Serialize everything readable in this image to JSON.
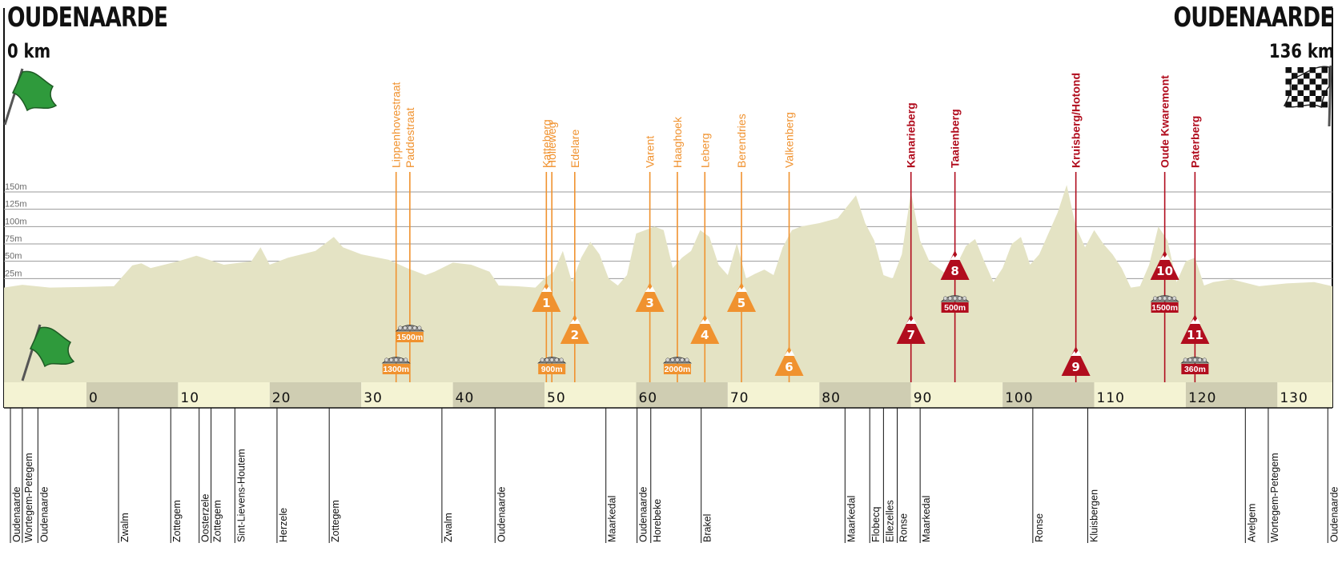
{
  "start": {
    "city": "OUDENAARDE",
    "distance": "0 km"
  },
  "finish": {
    "city": "OUDENAARDE",
    "distance": "136 km"
  },
  "colors": {
    "profile_fill": "#e4e3c4",
    "km_band_light": "#f4f3d3",
    "km_band_dark": "#cfcdb2",
    "climb_orange": "#f0922f",
    "climb_red": "#b10d1e",
    "grid": "#9a9a9a",
    "text": "#111111"
  },
  "chart_data": {
    "type": "area",
    "title": "",
    "xlabel": "",
    "ylabel": "",
    "xlim": [
      -9,
      136
    ],
    "ylim": [
      0,
      160
    ],
    "y_ticks": [
      {
        "value": 25,
        "label": "25m"
      },
      {
        "value": 50,
        "label": "50m"
      },
      {
        "value": 75,
        "label": "75m"
      },
      {
        "value": 100,
        "label": "100m"
      },
      {
        "value": 125,
        "label": "125m"
      },
      {
        "value": 150,
        "label": "150m"
      }
    ],
    "x_ticks": [
      0,
      10,
      20,
      30,
      40,
      50,
      60,
      70,
      80,
      90,
      100,
      110,
      120,
      130
    ],
    "series": [
      {
        "x": [
          -9,
          -7,
          -4,
          0,
          3,
          5,
          6,
          7,
          10,
          12,
          15,
          18,
          19,
          20,
          22,
          25,
          27,
          28,
          30,
          33,
          35,
          37,
          38,
          40,
          42,
          44,
          45,
          47,
          48,
          49,
          50,
          51,
          52,
          53,
          54,
          55,
          56,
          57,
          58,
          59,
          60,
          61,
          62,
          63,
          64,
          65,
          66,
          67,
          68,
          69,
          70,
          71,
          72,
          73,
          74,
          75,
          76,
          77,
          78,
          80,
          82,
          84,
          85,
          86,
          87,
          88,
          89,
          90,
          91,
          92,
          93,
          94,
          95,
          96,
          97,
          98,
          99,
          100,
          101,
          102,
          103,
          104,
          105,
          106,
          107,
          108,
          109,
          110,
          111,
          112,
          113,
          114,
          115,
          116,
          117,
          118,
          119,
          120,
          121,
          122,
          123,
          125,
          128,
          131,
          134,
          136
        ],
        "y": [
          12,
          16,
          12,
          13,
          14,
          44,
          47,
          40,
          50,
          58,
          45,
          50,
          70,
          45,
          55,
          65,
          85,
          70,
          60,
          52,
          40,
          30,
          35,
          48,
          45,
          35,
          15,
          14,
          13,
          12,
          25,
          35,
          65,
          20,
          55,
          78,
          60,
          25,
          15,
          30,
          90,
          95,
          100,
          95,
          40,
          55,
          65,
          95,
          85,
          45,
          30,
          76,
          25,
          32,
          38,
          30,
          70,
          95,
          100,
          105,
          112,
          145,
          105,
          80,
          30,
          25,
          60,
          150,
          80,
          50,
          40,
          30,
          45,
          72,
          82,
          50,
          20,
          40,
          75,
          85,
          45,
          60,
          90,
          120,
          160,
          100,
          70,
          95,
          75,
          60,
          40,
          12,
          14,
          45,
          100,
          80,
          20,
          50,
          55,
          15,
          20,
          24,
          14,
          18,
          20,
          14
        ]
      }
    ],
    "climbs": [
      {
        "name": "Katteberg",
        "km": 50.2,
        "number": "1",
        "category": "orange"
      },
      {
        "name": "Holleweg",
        "km": 50.8,
        "number": "",
        "category": "orange"
      },
      {
        "name": "Edelare",
        "km": 53.3,
        "number": "2",
        "category": "orange"
      },
      {
        "name": "Varent",
        "km": 61.5,
        "number": "3",
        "category": "orange"
      },
      {
        "name": "Haaghoek",
        "km": 64.5,
        "number": "",
        "category": "orange"
      },
      {
        "name": "Leberg",
        "km": 67.5,
        "number": "4",
        "category": "orange"
      },
      {
        "name": "Berendries",
        "km": 71.5,
        "number": "5",
        "category": "orange"
      },
      {
        "name": "Valkenberg",
        "km": 76.7,
        "number": "6",
        "category": "orange"
      },
      {
        "name": "Kanarieberg",
        "km": 90.0,
        "number": "7",
        "category": "red"
      },
      {
        "name": "Taaienberg",
        "km": 94.8,
        "number": "8",
        "category": "red"
      },
      {
        "name": "Kruisberg/Hotond",
        "km": 108.0,
        "number": "9",
        "category": "red"
      },
      {
        "name": "Oude Kwaremont",
        "km": 117.7,
        "number": "10",
        "category": "red"
      },
      {
        "name": "Paterberg",
        "km": 121.0,
        "number": "11",
        "category": "red"
      }
    ],
    "cobbles": [
      {
        "name": "Lippenhovestraat",
        "km": 33.8,
        "length": "1300m",
        "category": "orange"
      },
      {
        "name": "Paddestraat",
        "km": 35.3,
        "length": "1500m",
        "category": "orange"
      },
      {
        "name": "Holleweg",
        "km": 50.8,
        "length": "900m",
        "category": "orange"
      },
      {
        "name": "Haaghoek",
        "km": 64.5,
        "length": "2000m",
        "category": "orange"
      },
      {
        "name": "Taaienberg",
        "km": 94.8,
        "length": "500m",
        "category": "red"
      },
      {
        "name": "Oude Kwaremont",
        "km": 117.7,
        "length": "1500m",
        "category": "red"
      },
      {
        "name": "Paterberg",
        "km": 121.0,
        "length": "360m",
        "category": "red"
      }
    ],
    "places": [
      {
        "name": "Oudenaarde",
        "km": -8.3
      },
      {
        "name": "Wortegem-Petegem",
        "km": -7.0
      },
      {
        "name": "Oudenaarde",
        "km": -5.3
      },
      {
        "name": "Zwalm",
        "km": 3.5
      },
      {
        "name": "Zottegem",
        "km": 9.2
      },
      {
        "name": "Oosterzele",
        "km": 12.3
      },
      {
        "name": "Zottegem",
        "km": 13.6
      },
      {
        "name": "Sint-Lievens-Houtem",
        "km": 16.2
      },
      {
        "name": "Herzele",
        "km": 20.8
      },
      {
        "name": "Zottegem",
        "km": 26.5
      },
      {
        "name": "Zwalm",
        "km": 38.8
      },
      {
        "name": "Oudenaarde",
        "km": 44.6
      },
      {
        "name": "Maarkedal",
        "km": 56.7
      },
      {
        "name": "Oudenaarde",
        "km": 60.1
      },
      {
        "name": "Horebeke",
        "km": 61.6
      },
      {
        "name": "Brakel",
        "km": 67.1
      },
      {
        "name": "Maarkedal",
        "km": 82.8
      },
      {
        "name": "Flobecq",
        "km": 85.5
      },
      {
        "name": "Ellezelles",
        "km": 87.0
      },
      {
        "name": "Ronse",
        "km": 88.5
      },
      {
        "name": "Maarkedal",
        "km": 91.0
      },
      {
        "name": "Ronse",
        "km": 103.3
      },
      {
        "name": "Kluisbergen",
        "km": 109.3
      },
      {
        "name": "Avelgem",
        "km": 126.5
      },
      {
        "name": "Wortegem-Petegem",
        "km": 129.0
      },
      {
        "name": "Oudenaarde",
        "km": 135.5
      }
    ]
  }
}
